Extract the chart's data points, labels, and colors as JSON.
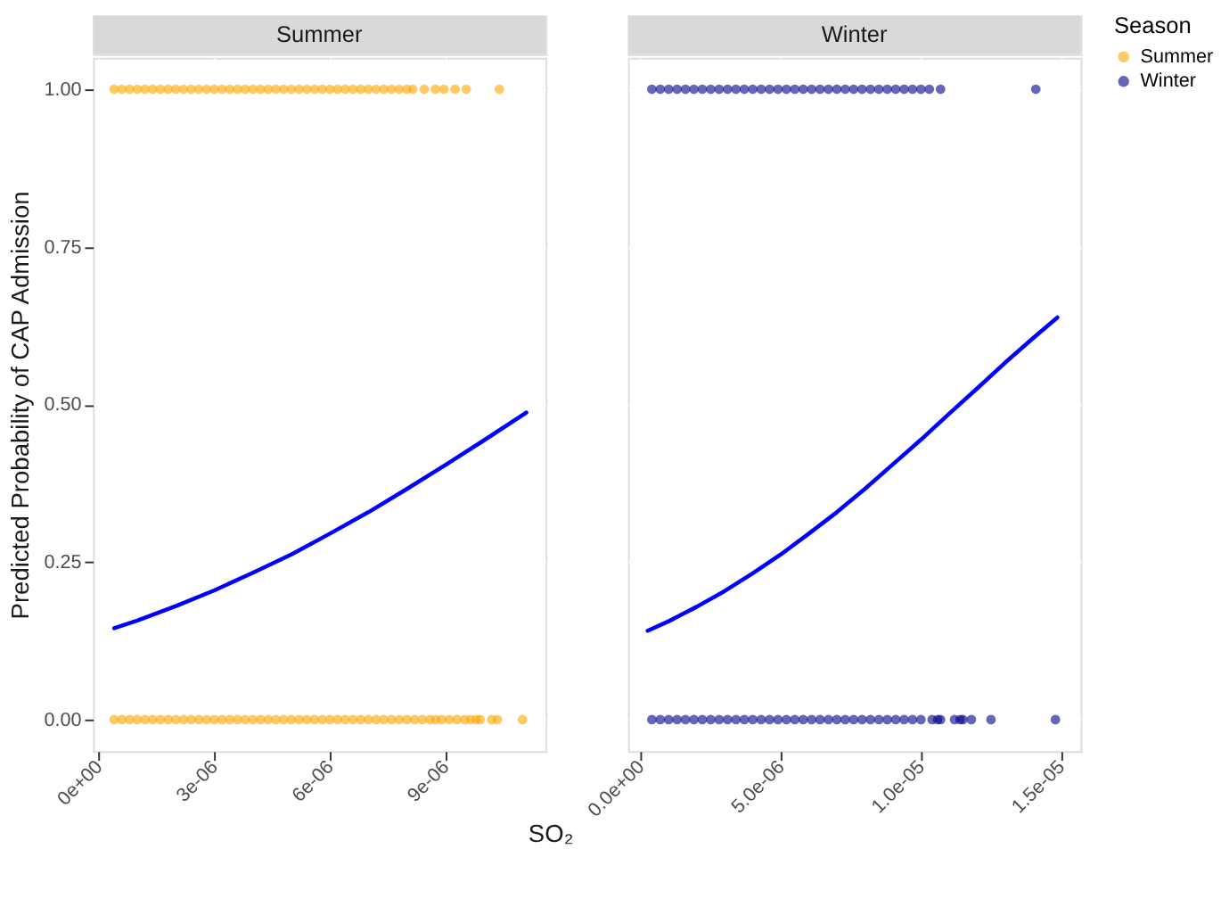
{
  "chart_data": [
    {
      "type": "scatter",
      "title": "Summer",
      "xlabel": "SO₂",
      "ylabel": "Predicted Probability of CAP Admission",
      "grid": true,
      "xlim": [
        -1.5e-07,
        1.16e-05
      ],
      "ylim": [
        -0.05,
        1.05
      ],
      "xticks": [
        {
          "value": 0,
          "label": "0e+00"
        },
        {
          "value": 3e-06,
          "label": "3e-06"
        },
        {
          "value": 6e-06,
          "label": "6e-06"
        },
        {
          "value": 9e-06,
          "label": "9e-06"
        }
      ],
      "yticks": [
        {
          "value": 0,
          "label": "0.00"
        },
        {
          "value": 0.25,
          "label": "0.25"
        },
        {
          "value": 0.5,
          "label": "0.50"
        },
        {
          "value": 0.75,
          "label": "0.75"
        },
        {
          "value": 1,
          "label": "1.00"
        }
      ],
      "series": [
        {
          "name": "Summer",
          "color": "#ffa500",
          "marker": "circle",
          "x": [
            4e-07,
            6e-07,
            8e-07,
            1e-06,
            1.2e-06,
            1.4e-06,
            1.6e-06,
            1.8e-06,
            2e-06,
            2.2e-06,
            2.4e-06,
            2.6e-06,
            2.8e-06,
            3e-06,
            3.2e-06,
            3.4e-06,
            3.6e-06,
            3.8e-06,
            4e-06,
            4.2e-06,
            4.4e-06,
            4.6e-06,
            4.8e-06,
            5e-06,
            5.2e-06,
            5.4e-06,
            5.6e-06,
            5.8e-06,
            6e-06,
            6.2e-06,
            6.4e-06,
            6.6e-06,
            6.8e-06,
            7e-06,
            7.2e-06,
            7.4e-06,
            7.6e-06,
            7.8e-06,
            8e-06,
            8.15e-06,
            8.45e-06,
            8.74e-06,
            8.96e-06,
            9.25e-06,
            9.54e-06,
            1.04e-05,
            4e-07,
            6e-07,
            8e-07,
            1e-06,
            1.2e-06,
            1.4e-06,
            1.6e-06,
            1.8e-06,
            2e-06,
            2.2e-06,
            2.4e-06,
            2.6e-06,
            2.8e-06,
            3e-06,
            3.2e-06,
            3.4e-06,
            3.6e-06,
            3.8e-06,
            4e-06,
            4.2e-06,
            4.4e-06,
            4.6e-06,
            4.8e-06,
            5e-06,
            5.2e-06,
            5.4e-06,
            5.6e-06,
            5.8e-06,
            6e-06,
            6.2e-06,
            6.4e-06,
            6.6e-06,
            6.8e-06,
            7e-06,
            7.2e-06,
            7.4e-06,
            7.6e-06,
            7.8e-06,
            8e-06,
            8.2e-06,
            8.4e-06,
            8.6e-06,
            8.75e-06,
            8.9e-06,
            9.1e-06,
            9.3e-06,
            9.5e-06,
            9.65e-06,
            9.8e-06,
            9.9e-06,
            1.02e-05,
            1.035e-05,
            1.1e-05
          ],
          "values": [
            1,
            1,
            1,
            1,
            1,
            1,
            1,
            1,
            1,
            1,
            1,
            1,
            1,
            1,
            1,
            1,
            1,
            1,
            1,
            1,
            1,
            1,
            1,
            1,
            1,
            1,
            1,
            1,
            1,
            1,
            1,
            1,
            1,
            1,
            1,
            1,
            1,
            1,
            1,
            1,
            1,
            1,
            1,
            1,
            1,
            1,
            0,
            0,
            0,
            0,
            0,
            0,
            0,
            0,
            0,
            0,
            0,
            0,
            0,
            0,
            0,
            0,
            0,
            0,
            0,
            0,
            0,
            0,
            0,
            0,
            0,
            0,
            0,
            0,
            0,
            0,
            0,
            0,
            0,
            0,
            0,
            0,
            0,
            0,
            0,
            0,
            0,
            0,
            0,
            0,
            0,
            0,
            0,
            0,
            0,
            0,
            0,
            0,
            0
          ]
        },
        {
          "type": "line",
          "color": "#0000ff",
          "x": [
            4e-07,
            1e-06,
            2e-06,
            3e-06,
            4e-06,
            5e-06,
            6e-06,
            7e-06,
            8e-06,
            9e-06,
            1e-05,
            1.11e-05
          ],
          "values": [
            0.145,
            0.157,
            0.18,
            0.205,
            0.233,
            0.262,
            0.295,
            0.329,
            0.366,
            0.404,
            0.443,
            0.487
          ]
        }
      ]
    },
    {
      "type": "scatter",
      "title": "Winter",
      "legend_title": "Season",
      "legend": "right",
      "grid": true,
      "tick_labels": "x",
      "xlim": [
        -4.5e-07,
        1.57e-05
      ],
      "ylim": [
        -0.05,
        1.05
      ],
      "xticks": [
        {
          "value": 0,
          "label": "0.0e+00"
        },
        {
          "value": 5e-06,
          "label": "5.0e-06"
        },
        {
          "value": 1e-05,
          "label": "1.0e-05"
        },
        {
          "value": 1.5e-05,
          "label": "1.5e-05"
        }
      ],
      "yticks": [
        0,
        0.25,
        0.5,
        0.75,
        1
      ],
      "series": [
        {
          "name": "Winter",
          "color": "#00008b",
          "marker": "circle",
          "x": [
            4e-07,
            7e-07,
            1e-06,
            1.3e-06,
            1.6e-06,
            1.9e-06,
            2.2e-06,
            2.5e-06,
            2.8e-06,
            3.1e-06,
            3.4e-06,
            3.7e-06,
            4e-06,
            4.3e-06,
            4.6e-06,
            4.9e-06,
            5.2e-06,
            5.5e-06,
            5.8e-06,
            6.1e-06,
            6.4e-06,
            6.7e-06,
            7e-06,
            7.3e-06,
            7.6e-06,
            7.9e-06,
            8.2e-06,
            8.5e-06,
            8.8e-06,
            9.1e-06,
            9.4e-06,
            9.7e-06,
            1e-05,
            1.03e-05,
            1.07e-05,
            1.41e-05,
            4e-07,
            7e-07,
            1e-06,
            1.3e-06,
            1.6e-06,
            1.9e-06,
            2.2e-06,
            2.5e-06,
            2.8e-06,
            3.1e-06,
            3.4e-06,
            3.7e-06,
            4e-06,
            4.3e-06,
            4.6e-06,
            4.9e-06,
            5.2e-06,
            5.5e-06,
            5.8e-06,
            6.1e-06,
            6.4e-06,
            6.7e-06,
            7e-06,
            7.3e-06,
            7.6e-06,
            7.9e-06,
            8.2e-06,
            8.5e-06,
            8.8e-06,
            9.1e-06,
            9.4e-06,
            9.7e-06,
            1e-05,
            1.04e-05,
            1.06e-05,
            1.07e-05,
            1.12e-05,
            1.14e-05,
            1.15e-05,
            1.18e-05,
            1.25e-05,
            1.48e-05
          ],
          "values": [
            1,
            1,
            1,
            1,
            1,
            1,
            1,
            1,
            1,
            1,
            1,
            1,
            1,
            1,
            1,
            1,
            1,
            1,
            1,
            1,
            1,
            1,
            1,
            1,
            1,
            1,
            1,
            1,
            1,
            1,
            1,
            1,
            1,
            1,
            1,
            1,
            0,
            0,
            0,
            0,
            0,
            0,
            0,
            0,
            0,
            0,
            0,
            0,
            0,
            0,
            0,
            0,
            0,
            0,
            0,
            0,
            0,
            0,
            0,
            0,
            0,
            0,
            0,
            0,
            0,
            0,
            0,
            0,
            0,
            0,
            0,
            0,
            0,
            0,
            0,
            0,
            0,
            0
          ]
        },
        {
          "type": "line",
          "color": "#0000ff",
          "x": [
            2.5e-07,
            1e-06,
            2e-06,
            3e-06,
            4e-06,
            5e-06,
            6e-06,
            7e-06,
            8e-06,
            9e-06,
            1e-05,
            1.1e-05,
            1.2e-05,
            1.3e-05,
            1.4e-05,
            1.487e-05
          ],
          "values": [
            0.141,
            0.156,
            0.179,
            0.204,
            0.232,
            0.262,
            0.295,
            0.329,
            0.366,
            0.405,
            0.444,
            0.485,
            0.525,
            0.566,
            0.605,
            0.638
          ]
        }
      ]
    }
  ]
}
